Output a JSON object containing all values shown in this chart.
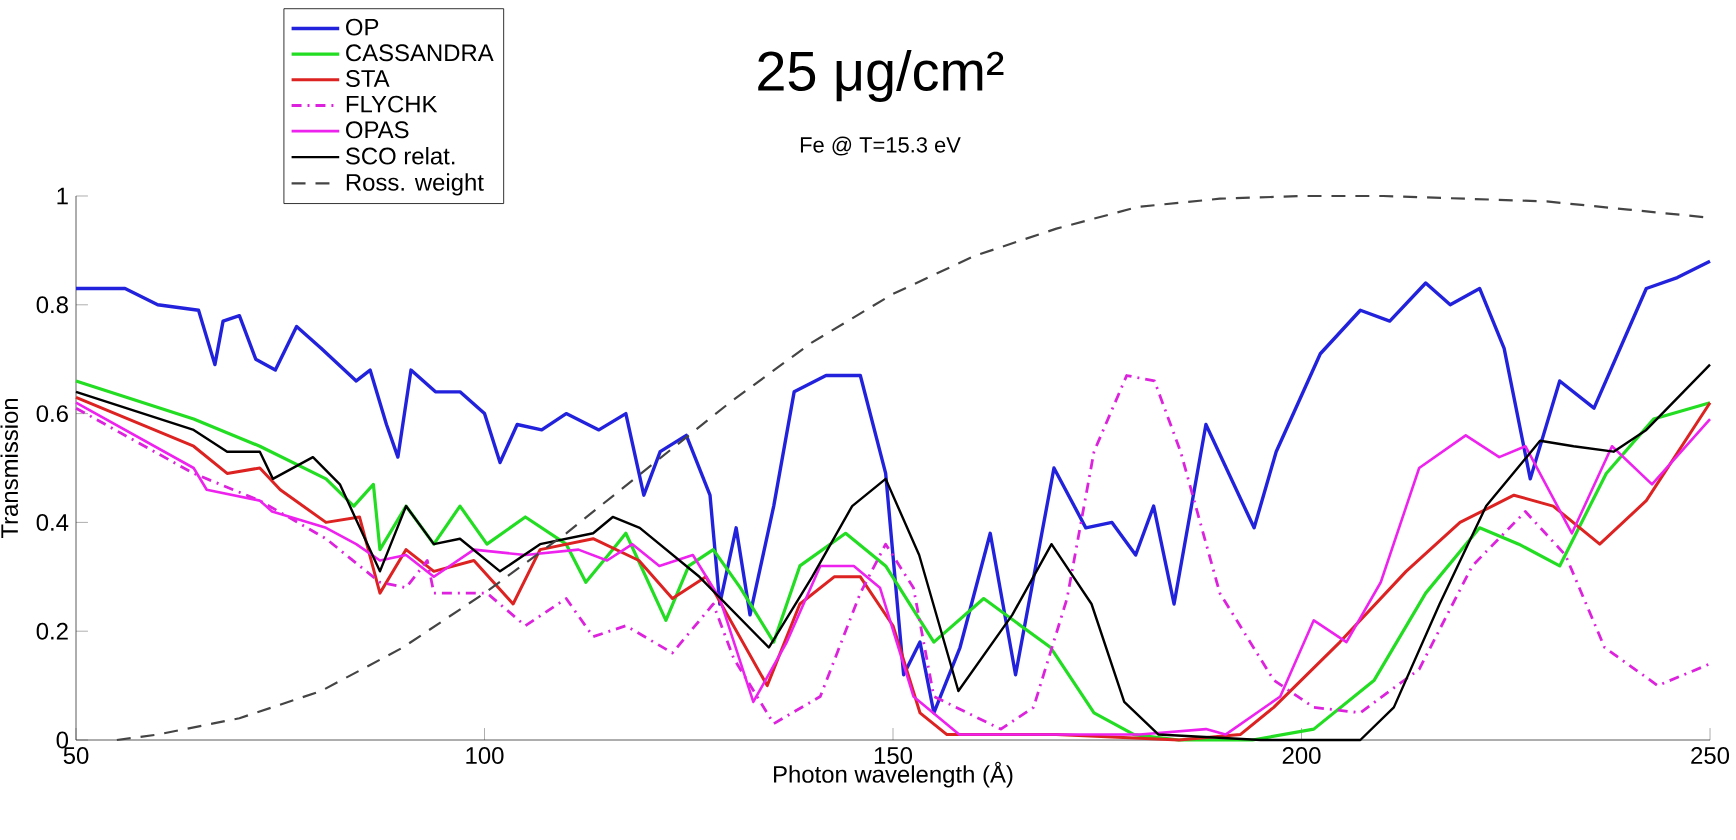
{
  "chart_data": {
    "type": "line",
    "title": "25 μg/cm²",
    "subtitle": "Fe @ T=15.3 eV",
    "xlabel": "Photon wavelength (Å)",
    "ylabel": "Transmission",
    "xlim": [
      50,
      250
    ],
    "xticks": [
      50,
      100,
      150,
      200,
      250
    ],
    "ylim": [
      0,
      1
    ],
    "yticks": [
      0,
      0.2,
      0.4,
      0.6,
      0.8,
      1
    ],
    "grid": false,
    "legend": "top left",
    "series": [
      {
        "name": "OP",
        "color": "#2222dd",
        "line_style": "solid",
        "x": [
          50,
          56,
          60,
          65,
          67,
          68,
          70,
          72,
          74.4,
          77,
          80,
          84.3,
          86,
          88,
          89.4,
          91,
          94,
          97,
          100,
          101.9,
          104,
          107,
          110,
          114,
          117.3,
          119.5,
          121.5,
          124.7,
          127.6,
          128.8,
          130.8,
          132.5,
          135.4,
          137.9,
          141.8,
          146,
          149.1,
          151.3,
          153.3,
          155,
          158.2,
          161.9,
          165,
          169.7,
          173.6,
          176.8,
          179.7,
          181.9,
          184.4,
          188.3,
          194.2,
          196.9,
          202.3,
          207.2,
          210.8,
          215.2,
          218.2,
          221.8,
          224.8,
          228,
          231.6,
          235.8,
          242.2,
          246,
          250
        ],
        "values": [
          0.83,
          0.83,
          0.8,
          0.79,
          0.69,
          0.77,
          0.78,
          0.7,
          0.68,
          0.76,
          0.72,
          0.66,
          0.68,
          0.58,
          0.52,
          0.68,
          0.64,
          0.64,
          0.6,
          0.51,
          0.58,
          0.57,
          0.6,
          0.57,
          0.6,
          0.45,
          0.53,
          0.56,
          0.45,
          0.25,
          0.39,
          0.23,
          0.43,
          0.64,
          0.67,
          0.67,
          0.49,
          0.12,
          0.18,
          0.05,
          0.17,
          0.38,
          0.12,
          0.5,
          0.39,
          0.4,
          0.34,
          0.43,
          0.25,
          0.58,
          0.39,
          0.53,
          0.71,
          0.79,
          0.77,
          0.84,
          0.8,
          0.83,
          0.72,
          0.48,
          0.66,
          0.61,
          0.83,
          0.85,
          0.88
        ]
      },
      {
        "name": "CASSANDRA",
        "color": "#22dd22",
        "line_style": "solid",
        "x": [
          50,
          64.4,
          72.5,
          80.6,
          84,
          86.4,
          87.2,
          90.4,
          93.8,
          97,
          100.3,
          105,
          110,
          112.4,
          115.7,
          117.3,
          122.2,
          125,
          128,
          131.3,
          135.4,
          138.6,
          144.2,
          149.1,
          155,
          161.1,
          169.3,
          174.6,
          179.5,
          185,
          194,
          201.5,
          208.9,
          215.2,
          221.8,
          226.6,
          231.6,
          237.3,
          243.1,
          250
        ],
        "values": [
          0.66,
          0.59,
          0.54,
          0.48,
          0.43,
          0.47,
          0.35,
          0.43,
          0.36,
          0.43,
          0.36,
          0.41,
          0.36,
          0.29,
          0.35,
          0.38,
          0.22,
          0.32,
          0.35,
          0.28,
          0.18,
          0.32,
          0.38,
          0.32,
          0.18,
          0.26,
          0.17,
          0.05,
          0.01,
          0,
          0,
          0.02,
          0.11,
          0.27,
          0.39,
          0.36,
          0.32,
          0.49,
          0.59,
          0.62
        ]
      },
      {
        "name": "STA",
        "color": "#dd2222",
        "line_style": "solid",
        "x": [
          50,
          64.4,
          68.5,
          72.5,
          75,
          80.6,
          84.7,
          87.2,
          90.4,
          93.8,
          98.7,
          103.5,
          106.8,
          113.3,
          118.9,
          123,
          127.1,
          134.6,
          138.6,
          142.8,
          146,
          150,
          153.3,
          156.6,
          170,
          185,
          192.5,
          196.6,
          204.7,
          212.8,
          219.4,
          226,
          230.8,
          236.5,
          242.2,
          250
        ],
        "values": [
          0.63,
          0.54,
          0.49,
          0.5,
          0.46,
          0.4,
          0.41,
          0.27,
          0.35,
          0.31,
          0.33,
          0.25,
          0.35,
          0.37,
          0.33,
          0.26,
          0.3,
          0.1,
          0.25,
          0.3,
          0.3,
          0.21,
          0.05,
          0.01,
          0.01,
          0,
          0.01,
          0.06,
          0.18,
          0.31,
          0.4,
          0.45,
          0.43,
          0.36,
          0.44,
          0.62
        ]
      },
      {
        "name": "FLYCHK",
        "color": "#dd22dd",
        "line_style": "dashdot",
        "x": [
          50,
          64.4,
          72.5,
          80.6,
          87.2,
          90.4,
          93,
          93.8,
          100.3,
          105,
          110,
          113.3,
          117.3,
          123,
          128,
          130.5,
          135.4,
          141.1,
          146,
          149.1,
          152.5,
          155,
          163.2,
          167.2,
          171.3,
          174.6,
          178.6,
          182,
          185.2,
          190,
          196.6,
          201.5,
          207.2,
          214.4,
          220.9,
          227.4,
          232.3,
          237.1,
          243.6,
          250
        ],
        "values": [
          0.61,
          0.49,
          0.44,
          0.37,
          0.29,
          0.28,
          0.33,
          0.27,
          0.27,
          0.21,
          0.26,
          0.19,
          0.21,
          0.16,
          0.25,
          0.15,
          0.03,
          0.08,
          0.27,
          0.36,
          0.28,
          0.08,
          0.02,
          0.06,
          0.26,
          0.53,
          0.67,
          0.66,
          0.53,
          0.27,
          0.11,
          0.06,
          0.05,
          0.13,
          0.32,
          0.42,
          0.34,
          0.17,
          0.1,
          0.14
        ]
      },
      {
        "name": "OPAS",
        "color": "#ee22ee",
        "line_style": "solid",
        "x": [
          50,
          64.4,
          66,
          72.5,
          74,
          80.6,
          84.3,
          87.2,
          90.4,
          93.8,
          98.7,
          105,
          111.5,
          115,
          118.1,
          121.4,
          125.5,
          128.8,
          132.9,
          137,
          141.1,
          145.2,
          148.4,
          152.5,
          158.1,
          170,
          180.2,
          188.3,
          190.7,
          197.4,
          201.5,
          205.5,
          209.7,
          214.4,
          220.1,
          224.2,
          227.4,
          233.1,
          238,
          242.9,
          250
        ],
        "values": [
          0.62,
          0.5,
          0.46,
          0.44,
          0.42,
          0.39,
          0.36,
          0.33,
          0.34,
          0.3,
          0.35,
          0.34,
          0.35,
          0.33,
          0.36,
          0.32,
          0.34,
          0.26,
          0.07,
          0.18,
          0.32,
          0.32,
          0.28,
          0.08,
          0.01,
          0.01,
          0.01,
          0.02,
          0.01,
          0.08,
          0.22,
          0.18,
          0.29,
          0.5,
          0.56,
          0.52,
          0.54,
          0.38,
          0.54,
          0.47,
          0.59
        ]
      },
      {
        "name": "SCO relat.",
        "color": "#000000",
        "line_style": "solid",
        "x": [
          50,
          64.4,
          68.5,
          72.5,
          74.1,
          79,
          82.3,
          87.2,
          90.4,
          93.8,
          97,
          101.9,
          106.8,
          113.3,
          115.7,
          119,
          126.3,
          134.8,
          140.1,
          145,
          149.1,
          153.2,
          158,
          164.6,
          169.4,
          174.3,
          178.3,
          182.5,
          195,
          207.2,
          211.3,
          216.9,
          222.6,
          229.2,
          233.3,
          238.2,
          242.2,
          250
        ],
        "values": [
          0.64,
          0.57,
          0.53,
          0.53,
          0.48,
          0.52,
          0.47,
          0.31,
          0.43,
          0.36,
          0.37,
          0.31,
          0.36,
          0.38,
          0.41,
          0.39,
          0.3,
          0.17,
          0.3,
          0.43,
          0.48,
          0.34,
          0.09,
          0.23,
          0.36,
          0.25,
          0.07,
          0.01,
          0,
          0,
          0.06,
          0.25,
          0.43,
          0.55,
          0.54,
          0.53,
          0.57,
          0.69
        ]
      },
      {
        "name": "Ross. weight",
        "color": "#444444",
        "line_style": "dashed",
        "x": [
          55,
          60,
          70,
          80,
          90,
          100,
          110,
          120,
          130,
          140,
          150,
          160,
          170,
          180,
          190,
          200,
          210,
          220,
          230,
          240,
          250
        ],
        "values": [
          0,
          0.01,
          0.04,
          0.09,
          0.17,
          0.27,
          0.38,
          0.5,
          0.62,
          0.73,
          0.82,
          0.89,
          0.94,
          0.98,
          0.995,
          1,
          1,
          0.995,
          0.99,
          0.975,
          0.96
        ]
      }
    ]
  }
}
